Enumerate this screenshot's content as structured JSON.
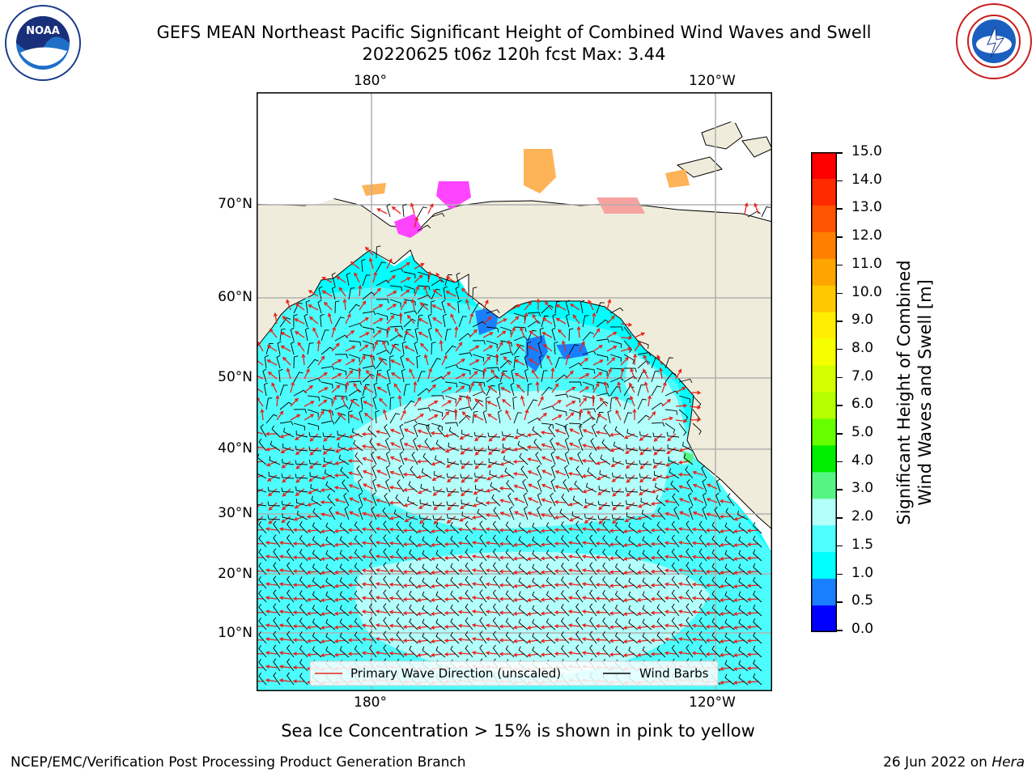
{
  "header": {
    "title_line1": "GEFS MEAN Northeast Pacific Significant Height of Combined Wind Waves and Swell",
    "title_line2": "20220625 t06z 120h fcst   Max: 3.44"
  },
  "map": {
    "lon_labels_top": [
      "180°",
      "120°W"
    ],
    "lon_labels_bottom": [
      "180°",
      "120°W"
    ],
    "lat_labels": [
      "70°N",
      "60°N",
      "50°N",
      "40°N",
      "30°N",
      "20°N",
      "10°N"
    ],
    "legend": {
      "wave_label": "Primary Wave Direction (unscaled)",
      "wind_label": "Wind Barbs"
    },
    "colors": {
      "land": "#efecdb",
      "ocean_1_0_1_5": "#00ffff",
      "ocean_1_5_2_0": "#4dfdfd",
      "ocean_2_0_3_0": "#b3fffb",
      "ocean_0_5_1_0": "#1a7fff",
      "ice_pink": "#ff44ff",
      "ice_orange": "#fdb357",
      "wave_arrow": "#e8211a",
      "wind_barb": "#000000"
    }
  },
  "colorbar": {
    "title": "Significant Height of Combined Wind Waves and Swell [m]",
    "title_line1": "Significant Height of Combined",
    "title_line2": "Wind Waves and Swell [m]",
    "ticks": [
      "15.0",
      "14.0",
      "13.0",
      "12.0",
      "11.0",
      "10.0",
      "9.0",
      "8.0",
      "7.0",
      "6.0",
      "5.0",
      "4.0",
      "3.0",
      "2.0",
      "1.5",
      "1.0",
      "0.5",
      "0.0"
    ],
    "colors_top_to_bottom": [
      "#ff0000",
      "#ff2a00",
      "#ff5500",
      "#ff7f00",
      "#ffa500",
      "#ffc800",
      "#ffee00",
      "#f6ff00",
      "#d4ff00",
      "#b4ff00",
      "#66ff00",
      "#00ee00",
      "#55f584",
      "#b3fff9",
      "#4dffff",
      "#00ffff",
      "#1a7fff",
      "#0000ff"
    ]
  },
  "footer": {
    "note": "Sea Ice Concentration > 15% is shown in pink to yellow",
    "left": "NCEP/EMC/Verification Post Processing Product Generation Branch",
    "right_date": "26 Jun 2022 on ",
    "right_host": "Hera"
  },
  "logos": {
    "left": "NOAA",
    "right": "NATIONAL WEATHER SERVICE"
  }
}
